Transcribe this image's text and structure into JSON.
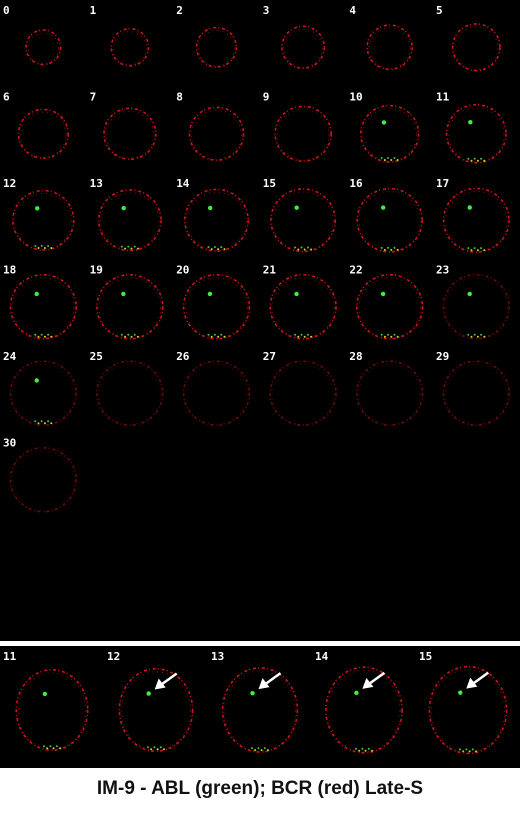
{
  "grid": {
    "frames": [
      "0",
      "1",
      "2",
      "3",
      "4",
      "5",
      "6",
      "7",
      "8",
      "9",
      "10",
      "11",
      "12",
      "13",
      "14",
      "15",
      "16",
      "17",
      "18",
      "19",
      "20",
      "21",
      "22",
      "23",
      "24",
      "25",
      "26",
      "27",
      "28",
      "29",
      "30"
    ]
  },
  "strip": {
    "frames": [
      "11",
      "12",
      "13",
      "14",
      "15"
    ]
  },
  "caption": "IM-9 - ABL (green); BCR (red) Late-S"
}
